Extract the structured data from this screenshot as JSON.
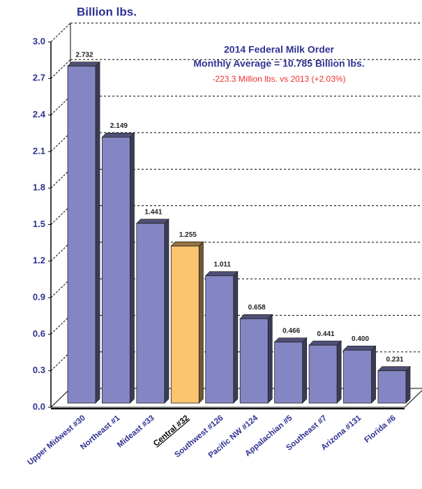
{
  "chart_data": {
    "type": "bar3d",
    "y_label": "Billion lbs.",
    "title": "2014 Federal Milk Order",
    "subtitle": "Monthly Average = 10.785 Billion lbs.",
    "annotation": "-223.3 Million lbs. vs 2013 (+2.03%)",
    "categories": [
      "Upper Midwest #30",
      "Northeast #1",
      "Mideast #33",
      "Central #32",
      "Southwest #126",
      "Pacific NW #124",
      "Appalachian #5",
      "Southeast #7",
      "Arizona #131",
      "Florida #6"
    ],
    "values": [
      2.732,
      2.149,
      1.441,
      1.255,
      1.011,
      0.658,
      0.466,
      0.441,
      0.4,
      0.231
    ],
    "value_labels": [
      "2.732",
      "2.149",
      "1.441",
      "1.255",
      "1.011",
      "0.658",
      "0.466",
      "0.441",
      "0.400",
      "0.231"
    ],
    "colors": [
      "#8486c4",
      "#8486c4",
      "#8486c4",
      "#fbc46e",
      "#8486c4",
      "#8486c4",
      "#8486c4",
      "#8486c4",
      "#8486c4",
      "#8486c4"
    ],
    "highlight": 3,
    "ylim": [
      0,
      3
    ],
    "yticks": [
      {
        "value": 0,
        "label": "0.0"
      },
      0.3,
      0.6,
      0.9,
      1.2,
      1.5,
      1.8,
      2.1,
      2.4,
      2.7,
      {
        "value": 3,
        "label": "3.0"
      }
    ],
    "grid": true
  }
}
